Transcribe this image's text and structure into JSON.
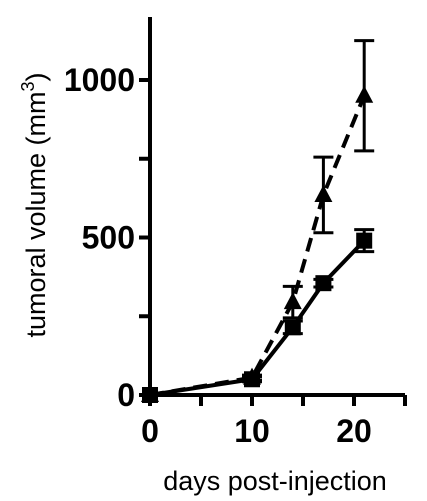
{
  "chart_data": {
    "type": "line",
    "title": "",
    "xlabel": "days post-injection",
    "ylabel": "tumoral volume (mm",
    "ylabel_superscript": "3",
    "ylabel_suffix": ")",
    "xlim": [
      0,
      25
    ],
    "ylim": [
      0,
      1200
    ],
    "x_ticks": [
      0,
      10,
      20
    ],
    "x_minor_ticks": [
      5,
      15,
      25
    ],
    "y_ticks": [
      0,
      500,
      1000
    ],
    "y_minor_ticks": [
      250,
      750
    ],
    "grid": false,
    "legend": "none",
    "series": [
      {
        "marker": "square",
        "line_style": "solid",
        "color": "#000000",
        "x": [
          0,
          10,
          14,
          17,
          21
        ],
        "y": [
          0,
          50,
          215,
          355,
          490
        ],
        "error": [
          0,
          8,
          20,
          12,
          35
        ]
      },
      {
        "marker": "triangle",
        "line_style": "dashed",
        "color": "#000000",
        "x": [
          0,
          10,
          14,
          17,
          21
        ],
        "y": [
          0,
          55,
          295,
          635,
          950
        ],
        "error": [
          0,
          8,
          50,
          120,
          175
        ]
      }
    ]
  }
}
